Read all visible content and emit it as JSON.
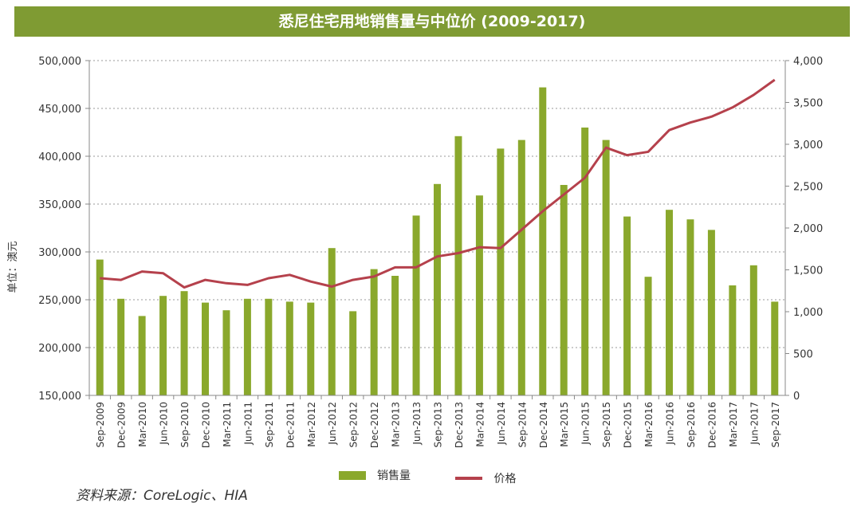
{
  "title": "悉尼住宅用地销售量与中位价 (2009-2017)",
  "source": "资料来源：CoreLogic、HIA",
  "colors": {
    "bar": "#8aa82c",
    "line": "#b5414c",
    "title_bg": "#7f9b33"
  },
  "chart_data": {
    "type": "bar",
    "title": "悉尼住宅用地销售量与中位价 (2009-2017)",
    "ylabel": "单位：澳元",
    "categories": [
      "Sep-2009",
      "Dec-2009",
      "Mar-2010",
      "Jun-2010",
      "Sep-2010",
      "Dec-2010",
      "Mar-2011",
      "Jun-2011",
      "Sep-2011",
      "Dec-2011",
      "Mar-2012",
      "Jun-2012",
      "Sep-2012",
      "Dec-2012",
      "Mar-2013",
      "Jun-2013",
      "Sep-2013",
      "Dec-2013",
      "Mar-2014",
      "Jun-2014",
      "Sep-2014",
      "Dec-2014",
      "Mar-2015",
      "Jun-2015",
      "Sep-2015",
      "Dec-2015",
      "Mar-2016",
      "Jun-2016",
      "Sep-2016",
      "Dec-2016",
      "Mar-2017",
      "Jun-2017",
      "Sep-2017"
    ],
    "ylim": [
      150000,
      500000
    ],
    "yticks": [
      "150,000",
      "200,000",
      "250,000",
      "300,000",
      "350,000",
      "400,000",
      "450,000",
      "500,000"
    ],
    "y2lim": [
      0,
      4000
    ],
    "y2ticks": [
      "0",
      "500",
      "1,000",
      "1,500",
      "2,000",
      "2,500",
      "3,000",
      "3,500",
      "4,000"
    ],
    "grid": true,
    "legend_position": "bottom",
    "series": [
      {
        "name": "销售量",
        "type": "bar",
        "axis": "left",
        "values": [
          292000,
          251000,
          233000,
          254000,
          259000,
          247000,
          239000,
          251000,
          251000,
          248000,
          247000,
          304000,
          238000,
          282000,
          275000,
          338000,
          371000,
          421000,
          359000,
          408000,
          417000,
          472000,
          370000,
          430000,
          417000,
          337000,
          274000,
          344000,
          334000,
          323000,
          265000,
          286000,
          248000
        ]
      },
      {
        "name": "价格",
        "type": "line",
        "axis": "right",
        "values": [
          1400,
          1380,
          1480,
          1460,
          1290,
          1380,
          1340,
          1320,
          1400,
          1440,
          1360,
          1300,
          1380,
          1420,
          1530,
          1530,
          1660,
          1700,
          1770,
          1760,
          1980,
          2200,
          2400,
          2600,
          2960,
          2870,
          2910,
          3170,
          3260,
          3330,
          3440,
          3590,
          3770
        ]
      }
    ]
  }
}
